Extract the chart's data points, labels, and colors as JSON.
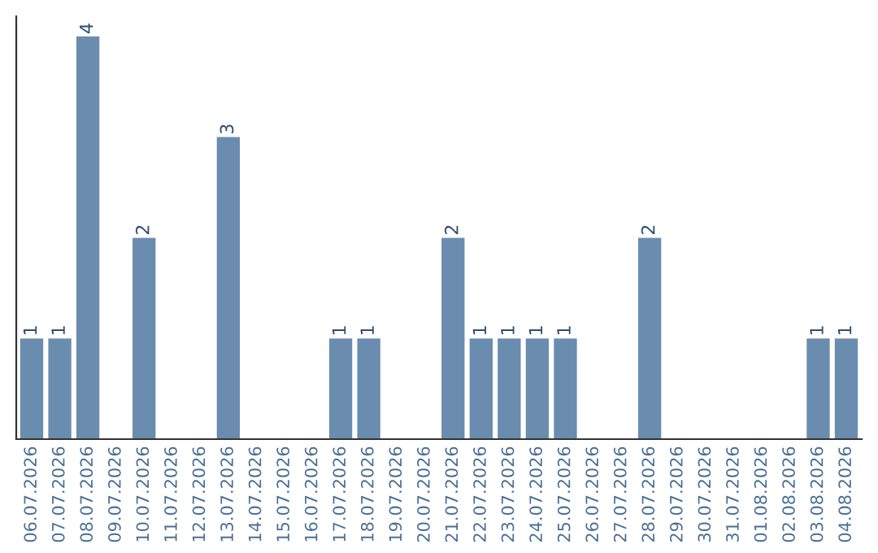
{
  "chart_data": {
    "type": "bar",
    "categories": [
      "06.07.2026",
      "07.07.2026",
      "08.07.2026",
      "09.07.2026",
      "10.07.2026",
      "11.07.2026",
      "12.07.2026",
      "13.07.2026",
      "14.07.2026",
      "15.07.2026",
      "16.07.2026",
      "17.07.2026",
      "18.07.2026",
      "19.07.2026",
      "20.07.2026",
      "21.07.2026",
      "22.07.2026",
      "23.07.2026",
      "24.07.2026",
      "25.07.2026",
      "26.07.2026",
      "27.07.2026",
      "28.07.2026",
      "29.07.2026",
      "30.07.2026",
      "31.07.2026",
      "01.08.2026",
      "02.08.2026",
      "03.08.2026",
      "04.08.2026"
    ],
    "values": [
      1,
      1,
      4,
      0,
      2,
      0,
      0,
      3,
      0,
      0,
      0,
      1,
      1,
      0,
      0,
      2,
      1,
      1,
      1,
      1,
      0,
      0,
      2,
      0,
      0,
      0,
      0,
      0,
      1,
      1
    ],
    "value_labels": [
      "1",
      "1",
      "4",
      null,
      "2",
      null,
      null,
      "3",
      null,
      null,
      null,
      "1",
      "1",
      null,
      null,
      "2",
      "1",
      "1",
      "1",
      "1",
      null,
      null,
      "2",
      null,
      null,
      null,
      null,
      null,
      "1",
      "1"
    ],
    "color": "#6a8caf",
    "ylim": [
      0,
      4.2
    ],
    "tick_labels": "x",
    "grid": false
  }
}
